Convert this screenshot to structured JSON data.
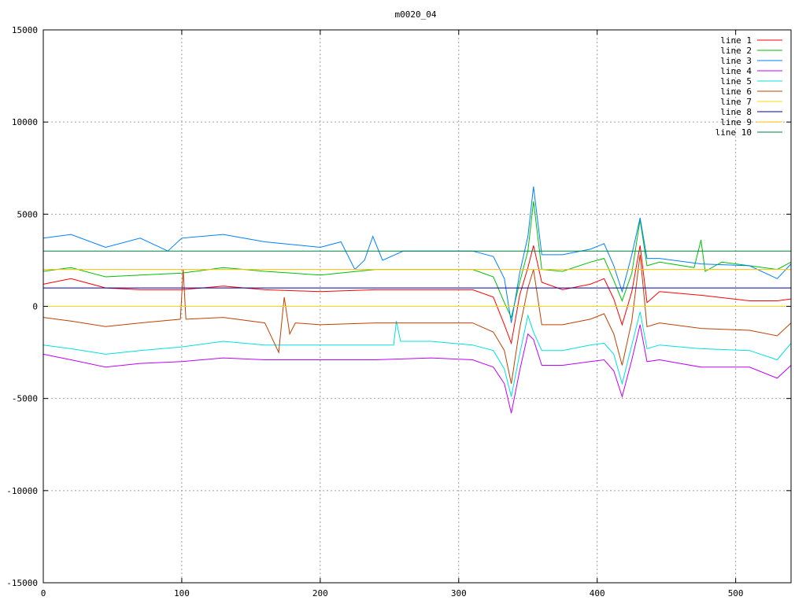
{
  "chart_data": {
    "type": "line",
    "title": "m0020_04",
    "xlabel": "",
    "ylabel": "",
    "xlim": [
      0,
      540
    ],
    "ylim": [
      -15000,
      15000
    ],
    "x_ticks": [
      "0",
      "100",
      "200",
      "300",
      "400",
      "500"
    ],
    "y_ticks": [
      "15000",
      "10000",
      "5000",
      "0",
      "-5000",
      "-10000",
      "-15000"
    ],
    "grid": true,
    "legend_position": "top-right",
    "series": [
      {
        "name": "line 1",
        "color": "#ff0000",
        "x": [
          0,
          20,
          45,
          70,
          100,
          130,
          160,
          200,
          240,
          280,
          310,
          325,
          333,
          338,
          344,
          350,
          354,
          360,
          375,
          395,
          405,
          412,
          418,
          425,
          431,
          436,
          445,
          475,
          510,
          530,
          540
        ],
        "y": [
          1200,
          1500,
          1000,
          900,
          900,
          1100,
          900,
          800,
          900,
          900,
          900,
          500,
          -1000,
          -2000,
          600,
          2100,
          3300,
          1300,
          900,
          1200,
          1500,
          400,
          -1000,
          800,
          3300,
          200,
          800,
          600,
          300,
          300,
          400
        ]
      },
      {
        "name": "line 2",
        "color": "#00c000",
        "x": [
          0,
          20,
          45,
          70,
          100,
          130,
          160,
          200,
          240,
          280,
          310,
          325,
          333,
          338,
          344,
          350,
          354,
          360,
          375,
          395,
          405,
          412,
          418,
          425,
          431,
          436,
          445,
          470,
          475,
          478,
          490,
          510,
          530,
          540
        ],
        "y": [
          1900,
          2100,
          1600,
          1700,
          1800,
          2100,
          1900,
          1700,
          2000,
          2000,
          2000,
          1600,
          200,
          -600,
          1300,
          3000,
          5700,
          2000,
          1900,
          2400,
          2600,
          1400,
          300,
          1800,
          4700,
          2200,
          2400,
          2100,
          3600,
          1900,
          2400,
          2200,
          2000,
          2400
        ]
      },
      {
        "name": "line 3",
        "color": "#0080ff",
        "x": [
          0,
          20,
          45,
          70,
          90,
          100,
          130,
          160,
          200,
          215,
          225,
          232,
          238,
          245,
          260,
          280,
          310,
          325,
          333,
          338,
          344,
          350,
          354,
          360,
          375,
          395,
          405,
          412,
          418,
          425,
          431,
          436,
          445,
          475,
          510,
          530,
          540
        ],
        "y": [
          3700,
          3900,
          3200,
          3700,
          3000,
          3700,
          3900,
          3500,
          3200,
          3500,
          2000,
          2500,
          3800,
          2500,
          3000,
          3000,
          3000,
          2700,
          1500,
          -900,
          1800,
          3800,
          6500,
          2800,
          2800,
          3100,
          3400,
          2200,
          800,
          2800,
          4800,
          2600,
          2600,
          2300,
          2200,
          1500,
          2300
        ]
      },
      {
        "name": "line 4",
        "color": "#c000ff",
        "x": [
          0,
          20,
          45,
          70,
          100,
          130,
          160,
          200,
          240,
          280,
          310,
          325,
          333,
          338,
          344,
          350,
          354,
          360,
          375,
          395,
          405,
          412,
          418,
          425,
          431,
          436,
          445,
          475,
          510,
          530,
          540
        ],
        "y": [
          -2600,
          -2900,
          -3300,
          -3100,
          -3000,
          -2800,
          -2900,
          -2900,
          -2900,
          -2800,
          -2900,
          -3300,
          -4200,
          -5800,
          -3500,
          -1500,
          -1800,
          -3200,
          -3200,
          -3000,
          -2900,
          -3500,
          -4900,
          -2900,
          -1000,
          -3000,
          -2900,
          -3300,
          -3300,
          -3900,
          -3200
        ]
      },
      {
        "name": "line 5",
        "color": "#00e0e0",
        "x": [
          0,
          20,
          45,
          70,
          100,
          130,
          160,
          200,
          240,
          253,
          255,
          258,
          280,
          310,
          325,
          333,
          338,
          344,
          350,
          354,
          360,
          375,
          395,
          405,
          412,
          418,
          425,
          431,
          436,
          445,
          475,
          510,
          530,
          540
        ],
        "y": [
          -2100,
          -2300,
          -2600,
          -2400,
          -2200,
          -1900,
          -2100,
          -2100,
          -2100,
          -2100,
          -800,
          -1900,
          -1900,
          -2100,
          -2400,
          -3400,
          -4900,
          -2600,
          -500,
          -1400,
          -2400,
          -2400,
          -2100,
          -2000,
          -2600,
          -4200,
          -2100,
          -300,
          -2300,
          -2100,
          -2300,
          -2400,
          -2900,
          -2000
        ]
      },
      {
        "name": "line 6",
        "color": "#c04000",
        "x": [
          0,
          20,
          45,
          70,
          99,
          101,
          103,
          130,
          160,
          170,
          174,
          178,
          182,
          200,
          240,
          280,
          310,
          325,
          333,
          338,
          344,
          350,
          354,
          360,
          375,
          395,
          405,
          412,
          418,
          425,
          431,
          436,
          445,
          475,
          510,
          530,
          540
        ],
        "y": [
          -600,
          -800,
          -1100,
          -900,
          -700,
          2000,
          -700,
          -600,
          -900,
          -2500,
          500,
          -1500,
          -900,
          -1000,
          -900,
          -900,
          -900,
          -1400,
          -2400,
          -4200,
          -1200,
          1000,
          2000,
          -1000,
          -1000,
          -700,
          -400,
          -1500,
          -3200,
          -800,
          2800,
          -1100,
          -900,
          -1200,
          -1300,
          -1600,
          -900
        ]
      },
      {
        "name": "line 7",
        "color": "#ffd700",
        "x": [
          0,
          540
        ],
        "y": [
          0,
          0
        ]
      },
      {
        "name": "line 8",
        "color": "#0000a0",
        "x": [
          0,
          540
        ],
        "y": [
          1000,
          1000
        ]
      },
      {
        "name": "line 9",
        "color": "#ffc000",
        "x": [
          0,
          540
        ],
        "y": [
          2000,
          2000
        ]
      },
      {
        "name": "line 10",
        "color": "#008040",
        "x": [
          0,
          540
        ],
        "y": [
          3000,
          3000
        ]
      }
    ]
  }
}
